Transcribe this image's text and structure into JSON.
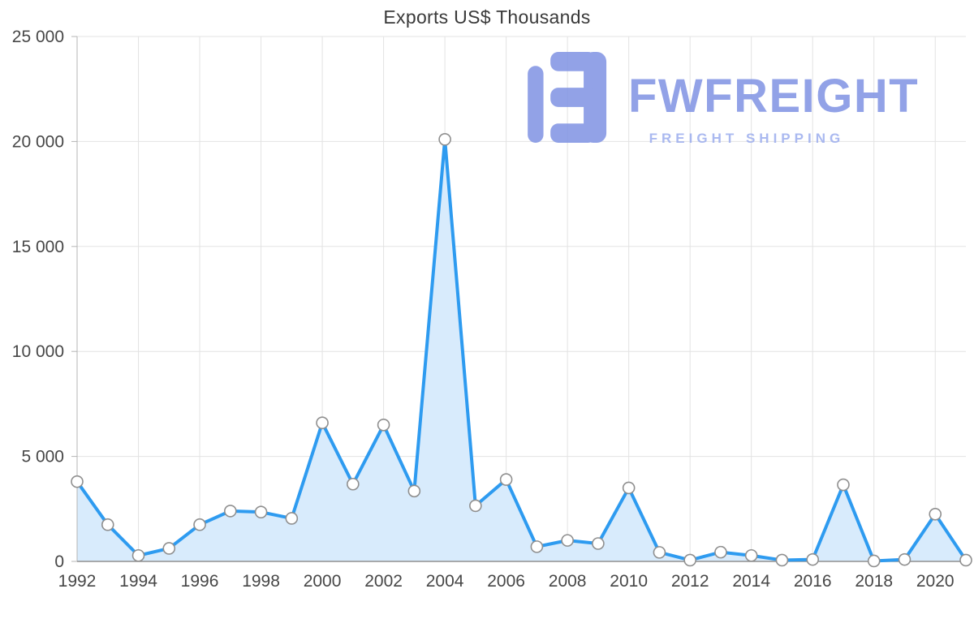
{
  "watermark": {
    "brand": "FWFREIGHT",
    "tagline": "FREIGHT SHIPPING",
    "brand_color": "#8396e4",
    "tagline_color": "#9fb0ee"
  },
  "chart_data": {
    "type": "area",
    "title": "Exports US$ Thousands",
    "x": [
      1992,
      1993,
      1994,
      1995,
      1996,
      1997,
      1998,
      1999,
      2000,
      2001,
      2002,
      2003,
      2004,
      2005,
      2006,
      2007,
      2008,
      2009,
      2010,
      2011,
      2012,
      2013,
      2014,
      2015,
      2016,
      2017,
      2018,
      2019,
      2020,
      2021
    ],
    "values": [
      3800,
      1750,
      280,
      620,
      1750,
      2400,
      2350,
      2050,
      6600,
      3680,
      6500,
      3350,
      20100,
      2650,
      3900,
      700,
      1000,
      850,
      3500,
      430,
      60,
      440,
      280,
      60,
      90,
      3650,
      20,
      90,
      2250,
      60
    ],
    "xlabel": "",
    "ylabel": "",
    "ylim": [
      0,
      25000
    ],
    "ytick_values": [
      0,
      5000,
      10000,
      15000,
      20000,
      25000
    ],
    "ytick_labels": [
      "0",
      "5 000",
      "10 000",
      "15 000",
      "20 000",
      "25 000"
    ],
    "xtick_years": [
      1992,
      1994,
      1996,
      1998,
      2000,
      2002,
      2004,
      2006,
      2008,
      2010,
      2012,
      2014,
      2016,
      2018,
      2020
    ],
    "grid": true,
    "legend": "none",
    "colors": {
      "line": "#2e9bf0",
      "fill": "#d8ebfc",
      "marker_fill": "#ffffff",
      "marker_stroke": "#8f8f8f",
      "grid": "#e3e3e3",
      "axis": "#b5b5b5",
      "axis_bottom": "#8f8f8f",
      "text": "#474747"
    }
  }
}
